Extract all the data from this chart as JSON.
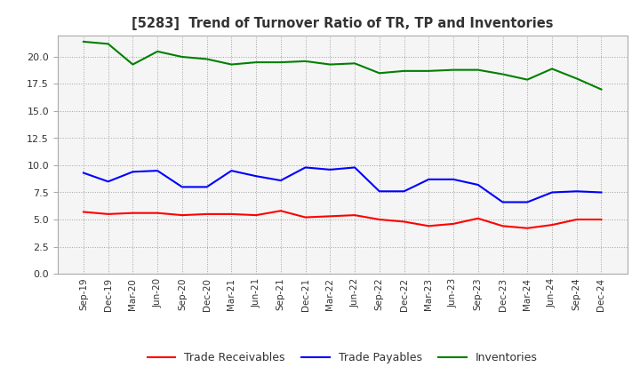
{
  "title": "[5283]  Trend of Turnover Ratio of TR, TP and Inventories",
  "x_labels": [
    "Sep-19",
    "Dec-19",
    "Mar-20",
    "Jun-20",
    "Sep-20",
    "Dec-20",
    "Mar-21",
    "Jun-21",
    "Sep-21",
    "Dec-21",
    "Mar-22",
    "Jun-22",
    "Sep-22",
    "Dec-22",
    "Mar-23",
    "Jun-23",
    "Sep-23",
    "Dec-23",
    "Mar-24",
    "Jun-24",
    "Sep-24",
    "Dec-24"
  ],
  "trade_receivables": [
    5.7,
    5.5,
    5.6,
    5.6,
    5.4,
    5.5,
    5.5,
    5.4,
    5.8,
    5.2,
    5.3,
    5.4,
    5.0,
    4.8,
    4.4,
    4.6,
    5.1,
    4.4,
    4.2,
    4.5,
    5.0,
    5.0
  ],
  "trade_payables": [
    9.3,
    8.5,
    9.4,
    9.5,
    8.0,
    8.0,
    9.5,
    9.0,
    8.6,
    9.8,
    9.6,
    9.8,
    7.6,
    7.6,
    8.7,
    8.7,
    8.2,
    6.6,
    6.6,
    7.5,
    7.6,
    7.5
  ],
  "inventories": [
    21.4,
    21.2,
    19.3,
    20.5,
    20.0,
    19.8,
    19.3,
    19.5,
    19.5,
    19.6,
    19.3,
    19.4,
    18.5,
    18.7,
    18.7,
    18.8,
    18.8,
    18.4,
    17.9,
    18.9,
    18.0,
    17.0
  ],
  "colors": {
    "trade_receivables": "#ff0000",
    "trade_payables": "#0000ff",
    "inventories": "#008000"
  },
  "ylim": [
    0.0,
    22.0
  ],
  "yticks": [
    0.0,
    2.5,
    5.0,
    7.5,
    10.0,
    12.5,
    15.0,
    17.5,
    20.0
  ],
  "legend_labels": [
    "Trade Receivables",
    "Trade Payables",
    "Inventories"
  ],
  "bg_color": "#ffffff",
  "plot_bg_color": "#f5f5f5",
  "grid_color": "#999999",
  "spine_color": "#aaaaaa"
}
